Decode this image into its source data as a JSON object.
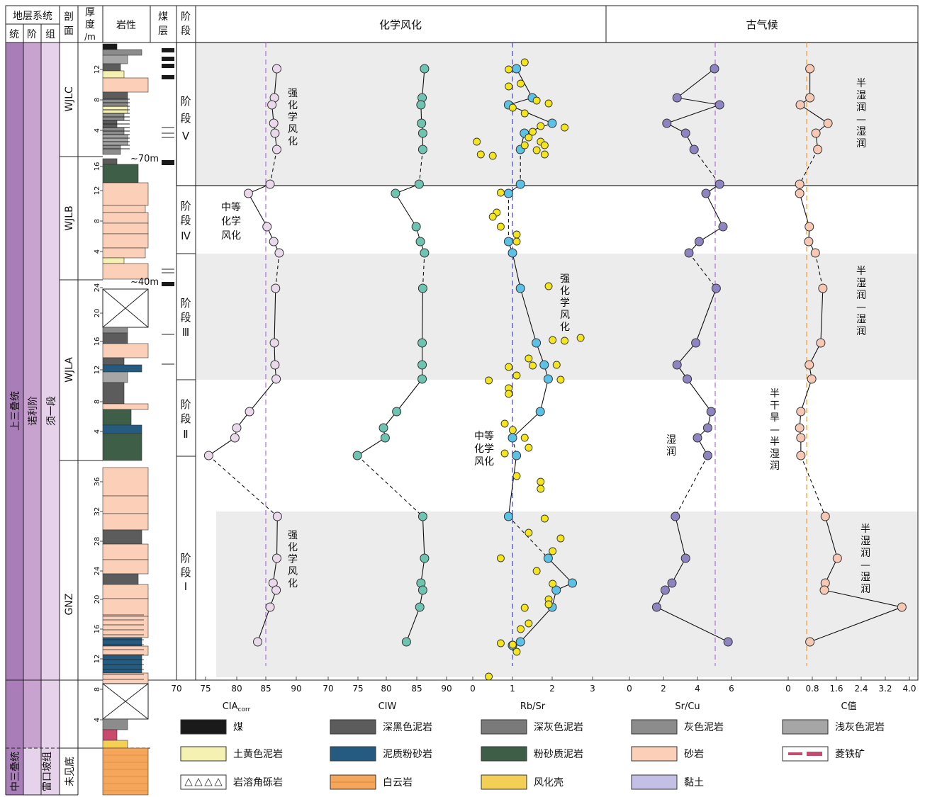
{
  "header": {
    "strat_system": "地层系统",
    "sub": [
      "统",
      "阶",
      "组"
    ],
    "profile": [
      "剖",
      "面"
    ],
    "thickness": [
      "厚",
      "度",
      "/m"
    ],
    "lithology": "岩性",
    "coal": [
      "煤",
      "层"
    ],
    "stage": [
      "阶",
      "段"
    ],
    "chem_weathering": "化学风化",
    "paleoclimate": "古气候"
  },
  "strat": {
    "series_upper": "上三叠统",
    "series_middle": "中三叠统",
    "stage_upper": "诺利阶",
    "formation_upper": "须一段",
    "formation_lower": "雷口坡组",
    "not_seen_base": "未见底"
  },
  "profiles": [
    "WJLC",
    "WJLB",
    "WJLA",
    "GNZ"
  ],
  "gaps": [
    "~70m",
    "~40m"
  ],
  "stages": [
    {
      "char": [
        "阶",
        "段"
      ],
      "num": "Ⅴ"
    },
    {
      "char": [
        "阶",
        "段"
      ],
      "num": "Ⅳ"
    },
    {
      "char": [
        "阶",
        "段"
      ],
      "num": "Ⅲ"
    },
    {
      "char": [
        "阶",
        "段"
      ],
      "num": "Ⅱ"
    },
    {
      "char": [
        "阶",
        "段"
      ],
      "num": "Ⅰ"
    }
  ],
  "thickness_ticks": {
    "WJLC": [
      "4",
      "8",
      "12"
    ],
    "WJLB": [
      "4",
      "8",
      "12",
      "16"
    ],
    "WJLA": [
      "4",
      "8",
      "12",
      "16",
      "20",
      "24"
    ],
    "GNZ": [
      "4",
      "8",
      "12",
      "16",
      "20",
      "24",
      "28",
      "32",
      "36"
    ]
  },
  "annotations": {
    "strong": [
      "强",
      "化",
      "学",
      "风",
      "化"
    ],
    "moderate": [
      "中等",
      "化学",
      "风化"
    ],
    "semi_humid": [
      "半",
      "湿",
      "润",
      "—",
      "湿",
      "润"
    ],
    "humid": [
      "湿",
      "润"
    ],
    "semi_arid": [
      "半",
      "干",
      "旱",
      "—",
      "半",
      "湿",
      "润"
    ]
  },
  "colors": {
    "cia": "#ead9ea",
    "ciw": "#6fc3b1",
    "rbsr_blue": "#5cc1e4",
    "rbsr_yellow": "#f5e51c",
    "srcu": "#8f84c2",
    "cval": "#f7c9b5",
    "purple_dash": "#b07ad8",
    "blue_dash": "#4b4fc4",
    "orange_dash": "#f5a243",
    "band": "#ececec",
    "strat_dark": "#a97db8",
    "strat_light": "#d8bfe0"
  },
  "chart_data": [
    {
      "type": "line",
      "name": "CIAcorr",
      "xlabel": "CIAcorr",
      "xlim": [
        70,
        90
      ],
      "xticks": [
        "70",
        "75",
        "80",
        "85",
        "90"
      ],
      "reference": 85,
      "values": [
        86.8,
        86.4,
        86.0,
        86.3,
        86.5,
        86.8,
        85.7,
        82.0,
        85.2,
        86.3,
        87.2,
        86.6,
        86.4,
        86.5,
        86.7,
        82.2,
        80.0,
        79.7,
        75.5,
        86.9,
        86.8,
        86.2,
        86.7,
        85.7,
        83.6
      ]
    },
    {
      "type": "line",
      "name": "CIW",
      "xlabel": "CIW",
      "xlim": [
        70,
        90
      ],
      "xticks": [
        "70",
        "75",
        "80",
        "85",
        "90"
      ],
      "values": [
        86.3,
        85.9,
        85.7,
        85.8,
        86.0,
        86.0,
        85.4,
        81.5,
        84.9,
        85.6,
        86.3,
        86.0,
        85.9,
        85.9,
        85.9,
        81.7,
        79.5,
        79.8,
        74.9,
        86.0,
        86.3,
        85.7,
        86.0,
        85.5,
        83.3
      ]
    },
    {
      "type": "scatter",
      "name": "Rb/Sr",
      "xlabel": "Rb/Sr",
      "xlim": [
        0,
        3
      ],
      "xticks": [
        "0",
        "1",
        "2",
        "3"
      ],
      "reference": 1,
      "line_values": [
        1.1,
        1.5,
        0.9,
        2.0,
        1.3,
        1.2,
        1.2,
        0.9,
        0.9,
        1.0,
        1.2,
        1.6,
        1.8,
        1.9,
        1.7,
        1.0,
        1.1,
        0.9,
        1.9,
        2.5,
        2.1,
        2.0,
        1.2,
        1.0
      ]
    },
    {
      "type": "line",
      "name": "Sr/Cu",
      "xlabel": "Sr/Cu",
      "xlim": [
        0,
        7
      ],
      "xticks": [
        "0",
        "2",
        "4",
        "6"
      ],
      "reference": 5,
      "values": [
        5.0,
        2.8,
        5.3,
        2.2,
        3.3,
        3.8,
        5.3,
        4.5,
        5.5,
        4.1,
        3.5,
        5.1,
        3.9,
        2.8,
        3.4,
        4.8,
        4.6,
        4.0,
        4.6,
        2.7,
        3.3,
        2.5,
        2.1,
        1.6,
        5.8
      ]
    },
    {
      "type": "line",
      "name": "C值",
      "xlabel": "C值",
      "xlim": [
        0,
        4.0
      ],
      "xticks": [
        "0",
        "0.8",
        "1.6",
        "2.4",
        "3.2",
        "4.0"
      ],
      "reference": 0.58,
      "values": [
        0.72,
        0.72,
        0.4,
        1.32,
        0.92,
        0.98,
        0.38,
        0.38,
        0.7,
        0.68,
        0.9,
        1.15,
        1.08,
        0.7,
        0.78,
        0.42,
        0.38,
        0.42,
        0.42,
        1.23,
        1.63,
        1.23,
        1.2,
        3.75,
        0.72
      ]
    }
  ],
  "legend": [
    {
      "label": "煤",
      "color": "#1a1a1a"
    },
    {
      "label": "深黑色泥岩",
      "color": "#5c5c5c"
    },
    {
      "label": "深灰色泥岩",
      "color": "#7a7a7a"
    },
    {
      "label": "灰色泥岩",
      "color": "#8c8c8c"
    },
    {
      "label": "浅灰色泥岩",
      "color": "#a6a6a6"
    },
    {
      "label": "土黄色泥岩",
      "color": "#f5f1b2"
    },
    {
      "label": "泥质粉砂岩",
      "color": "#255b80"
    },
    {
      "label": "粉砂质泥岩",
      "color": "#3f5e48"
    },
    {
      "label": "砂岩",
      "color": "#fbcfb8"
    },
    {
      "label": "菱铁矿",
      "color": "#c44a6e"
    },
    {
      "label": "岩溶角砾岩",
      "color": "#ffffff"
    },
    {
      "label": "白云岩",
      "color": "#f5a65a"
    },
    {
      "label": "风化壳",
      "color": "#f3cf56"
    },
    {
      "label": "黏土",
      "color": "#c4bfe4"
    }
  ]
}
